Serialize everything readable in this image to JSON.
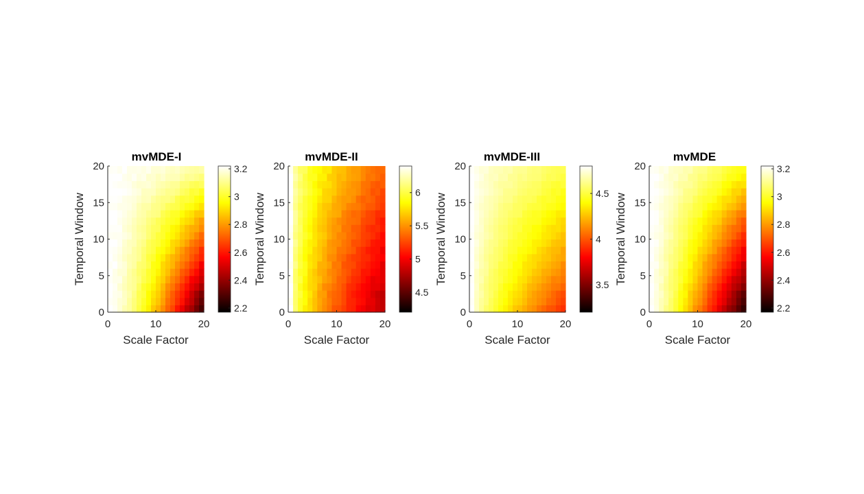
{
  "chart_data": [
    {
      "type": "heatmap",
      "title": "mvMDE-I",
      "xlabel": "Scale Factor",
      "ylabel": "Temporal Window",
      "x_ticks": [
        "0",
        "10",
        "20"
      ],
      "y_ticks": [
        "0",
        "5",
        "10",
        "15",
        "20"
      ],
      "xlim": [
        0,
        20
      ],
      "ylim": [
        0,
        20
      ],
      "grid_size": [
        20,
        20
      ],
      "colormap": "hot",
      "colorbar": {
        "ticks": [
          "2.2",
          "2.4",
          "2.6",
          "2.8",
          "3",
          "3.2"
        ],
        "range": [
          2.17,
          3.22
        ]
      },
      "model": {
        "v0": 3.22,
        "ax": 0.95,
        "s": 1.4,
        "ay": 0.9,
        "ty": 0.95,
        "wmin": 0.04,
        "wmax": 0.055
      }
    },
    {
      "type": "heatmap",
      "title": "mvMDE-II",
      "xlabel": "Scale Factor",
      "ylabel": "Temporal Window",
      "x_ticks": [
        "0",
        "10",
        "20"
      ],
      "y_ticks": [
        "0",
        "5",
        "10",
        "15",
        "20"
      ],
      "xlim": [
        0,
        20
      ],
      "ylim": [
        0,
        20
      ],
      "grid_size": [
        20,
        20
      ],
      "colormap": "hot",
      "colorbar": {
        "ticks": [
          "4.5",
          "5",
          "5.5",
          "6"
        ],
        "range": [
          4.2,
          6.4
        ]
      },
      "model": {
        "v0": 6.4,
        "ax": 1.6,
        "s": 0.55,
        "ay": 0.35,
        "ty": 1.1,
        "wmin": 0.06,
        "wmax": 0.06
      }
    },
    {
      "type": "heatmap",
      "title": "mvMDE-III",
      "xlabel": "Scale Factor",
      "ylabel": "Temporal Window",
      "x_ticks": [
        "0",
        "10",
        "20"
      ],
      "y_ticks": [
        "0",
        "5",
        "10",
        "15",
        "20"
      ],
      "xlim": [
        0,
        20
      ],
      "ylim": [
        0,
        20
      ],
      "grid_size": [
        20,
        20
      ],
      "colormap": "hot",
      "colorbar": {
        "ticks": [
          "3.5",
          "4",
          "4.5"
        ],
        "range": [
          3.2,
          4.8
        ]
      },
      "model": {
        "v0": 4.8,
        "ax": 0.9,
        "s": 0.75,
        "ay": 0.7,
        "ty": 0.85,
        "wmin": 0.03,
        "wmax": 0.04
      }
    },
    {
      "type": "heatmap",
      "title": "mvMDE",
      "xlabel": "Scale Factor",
      "ylabel": "Temporal Window",
      "x_ticks": [
        "0",
        "10",
        "20"
      ],
      "y_ticks": [
        "0",
        "5",
        "10",
        "15",
        "20"
      ],
      "xlim": [
        0,
        20
      ],
      "ylim": [
        0,
        20
      ],
      "grid_size": [
        20,
        20
      ],
      "colormap": "hot",
      "colorbar": {
        "ticks": [
          "2.2",
          "2.4",
          "2.6",
          "2.8",
          "3",
          "3.2"
        ],
        "range": [
          2.17,
          3.22
        ]
      },
      "model": {
        "v0": 3.22,
        "ax": 0.98,
        "s": 1.15,
        "ay": 0.75,
        "ty": 0.95,
        "wmin": 0.04,
        "wmax": 0.05
      }
    }
  ]
}
